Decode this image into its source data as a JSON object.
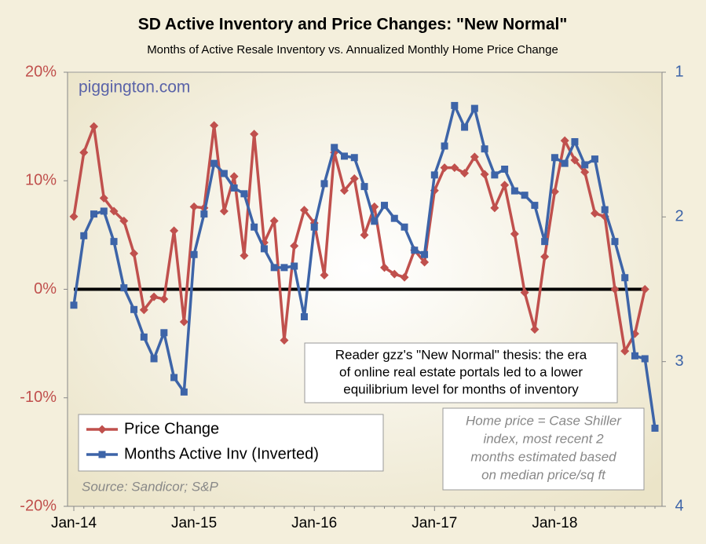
{
  "chart_data": {
    "type": "line",
    "title": "SD Active Inventory and Price Changes: \"New Normal\"",
    "subtitle": "Months of Active Resale Inventory vs. Annualized Monthly Home Price Change",
    "categories": [
      "Jan-14",
      null,
      null,
      null,
      null,
      null,
      null,
      null,
      null,
      null,
      null,
      null,
      "Jan-15",
      null,
      null,
      null,
      null,
      null,
      null,
      null,
      null,
      null,
      null,
      null,
      "Jan-16",
      null,
      null,
      null,
      null,
      null,
      null,
      null,
      null,
      null,
      null,
      null,
      "Jan-17",
      null,
      null,
      null,
      null,
      null,
      null,
      null,
      null,
      null,
      null,
      null,
      "Jan-18",
      null,
      null,
      null,
      null,
      null,
      null,
      null,
      null,
      null,
      null
    ],
    "series": [
      {
        "name": "Price Change",
        "color": "#c0504d",
        "marker": "diamond",
        "axis": "y",
        "values": [
          6.7,
          12.6,
          15.0,
          8.4,
          7.2,
          6.3,
          3.3,
          -1.9,
          -0.7,
          -0.9,
          5.4,
          -3.0,
          7.6,
          7.5,
          15.1,
          7.2,
          10.4,
          3.1,
          14.3,
          4.3,
          6.3,
          -4.7,
          4.0,
          7.3,
          6.1,
          1.3,
          12.6,
          9.1,
          10.2,
          5.0,
          7.6,
          2.0,
          1.4,
          1.1,
          3.6,
          2.5,
          9.1,
          11.2,
          11.2,
          10.7,
          12.2,
          10.6,
          7.5,
          9.6,
          5.1,
          -0.3,
          -3.7,
          3.0,
          9.0,
          13.7,
          11.9,
          10.8,
          7.0,
          6.7,
          0.0,
          -5.7,
          -4.1,
          0.0,
          null
        ]
      },
      {
        "name": "Months Active Inv (Inverted)",
        "color": "#3d64a8",
        "marker": "square",
        "axis": "y2",
        "values": [
          2.61,
          2.13,
          1.98,
          1.96,
          2.17,
          2.49,
          2.64,
          2.83,
          2.98,
          2.8,
          3.11,
          3.21,
          2.26,
          1.98,
          1.63,
          1.7,
          1.8,
          1.84,
          2.07,
          2.22,
          2.35,
          2.35,
          2.34,
          2.69,
          2.07,
          1.77,
          1.52,
          1.58,
          1.59,
          1.79,
          2.03,
          1.92,
          2.01,
          2.07,
          2.23,
          2.26,
          1.71,
          1.51,
          1.23,
          1.38,
          1.25,
          1.53,
          1.71,
          1.67,
          1.82,
          1.85,
          1.92,
          2.17,
          1.59,
          1.63,
          1.48,
          1.64,
          1.6,
          1.95,
          2.17,
          2.42,
          2.96,
          2.98,
          3.46
        ]
      }
    ],
    "ylim": [
      -20,
      20
    ],
    "yticks": [
      {
        "value": -20,
        "label": "-20%"
      },
      {
        "value": -10,
        "label": "-10%"
      },
      {
        "value": 0,
        "label": "0%"
      },
      {
        "value": 10,
        "label": "10%"
      },
      {
        "value": 20,
        "label": "20%"
      }
    ],
    "y2lim": [
      4,
      1
    ],
    "y2ticks": [
      1,
      2,
      3,
      4
    ],
    "zero_line": true,
    "legend": "lower left",
    "annotations": {
      "watermark": "piggington.com",
      "thesis": [
        "Reader gzz's \"New Normal\" thesis: the era",
        "of online real estate portals led to a lower",
        "equilibrium level for months of inventory"
      ],
      "note": [
        "Home price = Case Shiller",
        "index, most recent 2",
        "months estimated based",
        "on median price/sq ft"
      ],
      "source": "Source: Sandicor; S&P"
    }
  }
}
